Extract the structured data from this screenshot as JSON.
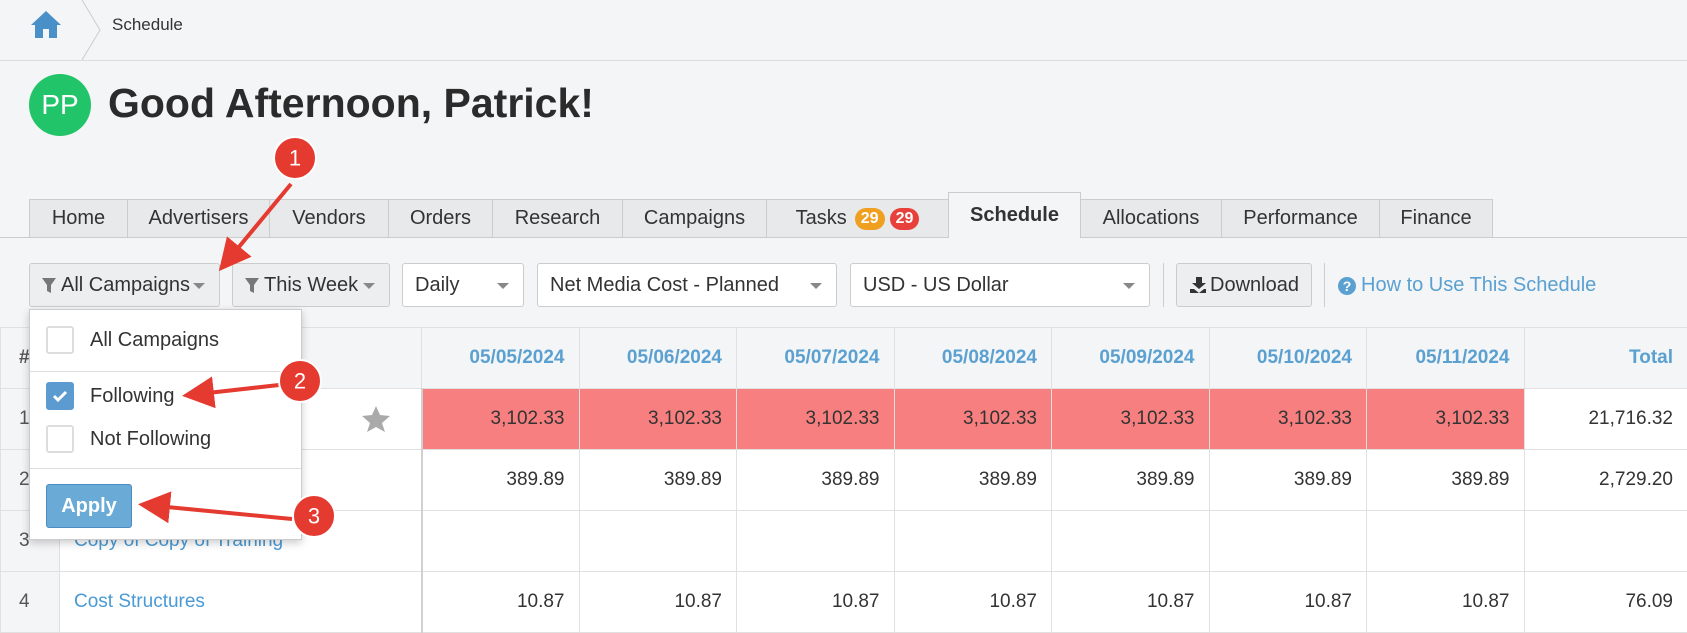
{
  "breadcrumb": {
    "current": "Schedule"
  },
  "greeting": {
    "avatar": "PP",
    "title": "Good Afternoon, Patrick!"
  },
  "tabs": [
    {
      "label": "Home"
    },
    {
      "label": "Advertisers"
    },
    {
      "label": "Vendors"
    },
    {
      "label": "Orders"
    },
    {
      "label": "Research"
    },
    {
      "label": "Campaigns"
    },
    {
      "label": "Tasks",
      "badges": [
        "29",
        "29"
      ]
    },
    {
      "label": "Schedule",
      "active": true
    },
    {
      "label": "Allocations"
    },
    {
      "label": "Performance"
    },
    {
      "label": "Finance"
    }
  ],
  "toolbar": {
    "campaign_filter": "All Campaigns",
    "period_filter": "This Week",
    "interval": "Daily",
    "metric": "Net Media Cost - Planned",
    "currency": "USD - US Dollar",
    "download": "Download",
    "help": "How to Use This Schedule"
  },
  "dropdown": {
    "options": [
      {
        "label": "All Campaigns",
        "checked": false
      },
      {
        "label": "Following",
        "checked": true
      },
      {
        "label": "Not Following",
        "checked": false
      }
    ],
    "apply": "Apply"
  },
  "annotations": [
    "1",
    "2",
    "3"
  ],
  "table": {
    "header": {
      "index": "#",
      "dates": [
        "05/05/2024",
        "05/06/2024",
        "05/07/2024",
        "05/08/2024",
        "05/09/2024",
        "05/10/2024",
        "05/11/2024"
      ],
      "total": "Total"
    },
    "rows": [
      {
        "index": "1",
        "highlight": true,
        "values": [
          "3,102.33",
          "3,102.33",
          "3,102.33",
          "3,102.33",
          "3,102.33",
          "3,102.33",
          "3,102.33"
        ],
        "total": "21,716.32"
      },
      {
        "index": "2",
        "values": [
          "389.89",
          "389.89",
          "389.89",
          "389.89",
          "389.89",
          "389.89",
          "389.89"
        ],
        "total": "2,729.20"
      },
      {
        "index": "3",
        "name": "Copy of Copy of Training",
        "values": []
      },
      {
        "index": "4",
        "name": "Cost Structures",
        "values": [
          "10.87",
          "10.87",
          "10.87",
          "10.87",
          "10.87",
          "10.87",
          "10.87"
        ],
        "total": "76.09"
      }
    ]
  }
}
